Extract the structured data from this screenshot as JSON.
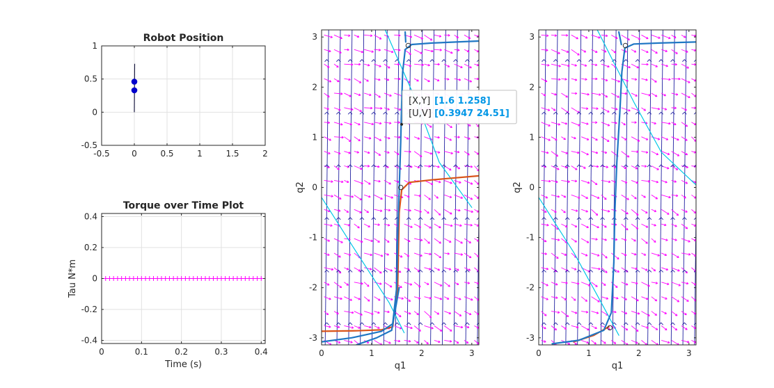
{
  "colors": {
    "field": "#1f1fa0",
    "arrows": "#ff00ff",
    "trajectory": "#1f77c4",
    "reference": "#00c8e6",
    "torque": "#ff00ff",
    "optimal": "#d95319",
    "robot": "#0000cc"
  },
  "chart_data": [
    {
      "id": "robot-position",
      "type": "scatter",
      "title": "Robot Position",
      "xlabel": "",
      "ylabel": "",
      "xlim": [
        -0.5,
        2
      ],
      "ylim": [
        -0.5,
        1
      ],
      "grid": true,
      "xticks": [
        "-0.5",
        "0",
        "0.5",
        "1",
        "1.5",
        "2"
      ],
      "yticks": [
        "-0.5",
        "0",
        "0.5",
        "1"
      ],
      "link": [
        [
          0,
          0
        ],
        [
          0.005,
          0.73
        ]
      ],
      "points": [
        [
          0,
          0.46
        ],
        [
          0,
          0.33
        ]
      ]
    },
    {
      "id": "torque-plot",
      "type": "line",
      "title": "Torque over Time Plot",
      "xlabel": "Time (s)",
      "ylabel": "Tau N*m",
      "xlim": [
        0,
        0.41
      ],
      "ylim": [
        -0.42,
        0.42
      ],
      "grid": true,
      "xticks": [
        "0",
        "0.1",
        "0.2",
        "0.3",
        "0.4"
      ],
      "yticks": [
        "-0.4",
        "-0.2",
        "0",
        "0.2",
        "0.4"
      ],
      "marker": "+",
      "x_start": 0,
      "x_step": 0.01,
      "x_end": 0.41,
      "y": 0
    },
    {
      "id": "phase-left",
      "type": "line",
      "title": "",
      "xlabel": "q1",
      "ylabel": "q2",
      "xlim": [
        0,
        3.14159
      ],
      "ylim": [
        -3.14159,
        3.14159
      ],
      "grid": false,
      "xticks": [
        "0",
        "1",
        "2",
        "3"
      ],
      "yticks": [
        "-3",
        "-2",
        "-1",
        "0",
        "1",
        "2",
        "3"
      ],
      "series": [
        {
          "role": "reference",
          "points": [
            [
              1.27,
              3.14
            ],
            [
              1.9,
              1.7
            ],
            [
              2.35,
              0.5
            ],
            [
              3.0,
              -0.4
            ]
          ]
        },
        {
          "role": "reference",
          "points": [
            [
              0.0,
              -0.2
            ],
            [
              0.7,
              -1.3
            ],
            [
              1.35,
              -2.3
            ],
            [
              1.65,
              -2.9
            ]
          ]
        },
        {
          "role": "optimal",
          "points": [
            [
              0.0,
              -2.87
            ],
            [
              0.7,
              -2.86
            ],
            [
              1.2,
              -2.84
            ],
            [
              1.42,
              -2.78
            ],
            [
              1.52,
              -2.0
            ],
            [
              1.55,
              -0.5
            ],
            [
              1.6,
              -0.05
            ],
            [
              1.75,
              0.1
            ],
            [
              2.2,
              0.15
            ],
            [
              3.14,
              0.23
            ]
          ]
        },
        {
          "role": "trajectory",
          "points": [
            [
              0.0,
              -3.08
            ],
            [
              0.6,
              -3.0
            ],
            [
              1.2,
              -2.87
            ],
            [
              1.42,
              -2.72
            ],
            [
              1.5,
              -2.0
            ],
            [
              1.52,
              -1.0
            ],
            [
              1.55,
              -0.05
            ],
            [
              1.58,
              0.9
            ],
            [
              1.6,
              1.7
            ],
            [
              1.62,
              2.3
            ],
            [
              1.67,
              2.75
            ],
            [
              1.8,
              2.85
            ],
            [
              2.2,
              2.88
            ],
            [
              3.14,
              2.92
            ]
          ]
        },
        {
          "role": "trajectory",
          "points": [
            [
              0.7,
              -3.14
            ],
            [
              1.1,
              -3.0
            ],
            [
              1.4,
              -2.85
            ],
            [
              1.55,
              -2.0
            ]
          ]
        },
        {
          "role": "trajectory",
          "points": [
            [
              1.67,
              3.1
            ],
            [
              1.68,
              2.9
            ]
          ]
        }
      ],
      "markers": [
        [
          1.73,
          2.83
        ],
        [
          1.58,
          0.0
        ]
      ],
      "datatip": {
        "point": [
          1.6,
          1.258
        ],
        "xy_label": "[X,Y]",
        "xy_value": "[1.6 1.258]",
        "uv_label": "[U,V]",
        "uv_value": "[0.3947 24.51]"
      }
    },
    {
      "id": "phase-right",
      "type": "line",
      "title": "",
      "xlabel": "q1",
      "ylabel": "q2",
      "xlim": [
        0,
        3.14159
      ],
      "ylim": [
        -3.14159,
        3.14159
      ],
      "grid": false,
      "xticks": [
        "0",
        "1",
        "2",
        "3"
      ],
      "yticks": [
        "-3",
        "-2",
        "-1",
        "0",
        "1",
        "2",
        "3"
      ],
      "series": [
        {
          "role": "reference",
          "points": [
            [
              1.17,
              3.14
            ],
            [
              1.9,
              1.7
            ],
            [
              2.45,
              0.7
            ],
            [
              3.14,
              0.05
            ]
          ]
        },
        {
          "role": "reference",
          "points": [
            [
              0.0,
              -0.2
            ],
            [
              0.7,
              -1.3
            ],
            [
              1.25,
              -2.3
            ],
            [
              1.6,
              -2.95
            ]
          ]
        },
        {
          "role": "optimal",
          "points": [
            [
              0.7,
              -3.08
            ],
            [
              1.1,
              -2.95
            ],
            [
              1.4,
              -2.78
            ]
          ]
        },
        {
          "role": "trajectory",
          "points": [
            [
              0.27,
              -3.12
            ],
            [
              0.8,
              -3.05
            ],
            [
              1.3,
              -2.85
            ],
            [
              1.45,
              -2.5
            ],
            [
              1.5,
              -1.5
            ],
            [
              1.52,
              -0.5
            ],
            [
              1.56,
              0.5
            ],
            [
              1.62,
              1.5
            ],
            [
              1.66,
              2.3
            ],
            [
              1.72,
              2.78
            ],
            [
              1.9,
              2.86
            ],
            [
              2.4,
              2.88
            ],
            [
              3.14,
              2.9
            ]
          ]
        },
        {
          "role": "trajectory",
          "points": [
            [
              1.6,
              3.1
            ],
            [
              1.65,
              2.85
            ]
          ]
        }
      ],
      "markers": [
        [
          1.73,
          2.83
        ],
        [
          1.42,
          -2.8
        ]
      ]
    }
  ]
}
